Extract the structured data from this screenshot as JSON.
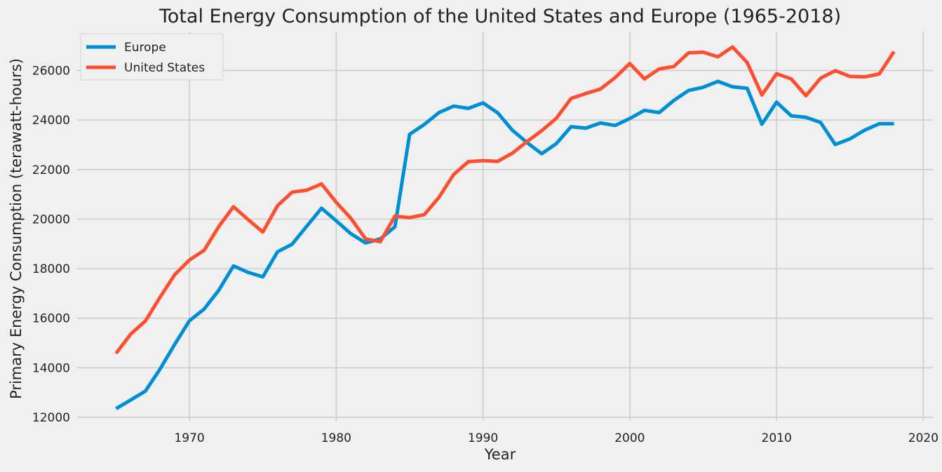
{
  "chart_data": {
    "type": "line",
    "title": "Total Energy Consumption of the United States and Europe (1965-2018)",
    "xlabel": "Year",
    "ylabel": "Primary Energy Consumption (terawatt-hours)",
    "xlim": [
      1962.35,
      2020.65
    ],
    "ylim": [
      11860,
      27570
    ],
    "xticks": [
      1970,
      1980,
      1990,
      2000,
      2010,
      2020
    ],
    "yticks": [
      12000,
      14000,
      16000,
      18000,
      20000,
      22000,
      24000,
      26000
    ],
    "grid": true,
    "legend_position": "top-left",
    "x": [
      1965,
      1966,
      1967,
      1968,
      1969,
      1970,
      1971,
      1972,
      1973,
      1974,
      1975,
      1976,
      1977,
      1978,
      1979,
      1980,
      1981,
      1982,
      1983,
      1984,
      1985,
      1986,
      1987,
      1988,
      1989,
      1990,
      1991,
      1992,
      1993,
      1994,
      1995,
      1996,
      1997,
      1998,
      1999,
      2000,
      2001,
      2002,
      2003,
      2004,
      2005,
      2006,
      2007,
      2008,
      2009,
      2010,
      2011,
      2012,
      2013,
      2014,
      2015,
      2016,
      2017,
      2018
    ],
    "series": [
      {
        "name": "Europe",
        "color": "#008fd5",
        "values": [
          12350,
          12700,
          13060,
          13950,
          14950,
          15900,
          16370,
          17130,
          18110,
          17850,
          17670,
          18680,
          18990,
          19720,
          20440,
          19930,
          19410,
          19040,
          19200,
          19690,
          23420,
          23820,
          24300,
          24560,
          24470,
          24690,
          24290,
          23590,
          23090,
          22640,
          23050,
          23730,
          23670,
          23880,
          23780,
          24060,
          24390,
          24300,
          24790,
          25190,
          25320,
          25560,
          25340,
          25280,
          23830,
          24720,
          24170,
          24110,
          23900,
          23010,
          23240,
          23590,
          23850,
          23850
        ]
      },
      {
        "name": "United States",
        "color": "#fc4f30",
        "values": [
          14580,
          15360,
          15890,
          16850,
          17760,
          18350,
          18740,
          19700,
          20500,
          19980,
          19480,
          20540,
          21090,
          21170,
          21420,
          20680,
          20030,
          19200,
          19090,
          20120,
          20060,
          20180,
          20880,
          21800,
          22320,
          22360,
          22330,
          22660,
          23130,
          23570,
          24070,
          24870,
          25070,
          25250,
          25710,
          26280,
          25660,
          26060,
          26160,
          26710,
          26740,
          26550,
          26950,
          26320,
          25010,
          25870,
          25660,
          24980,
          25690,
          25990,
          25760,
          25740,
          25860,
          26760
        ]
      }
    ]
  }
}
